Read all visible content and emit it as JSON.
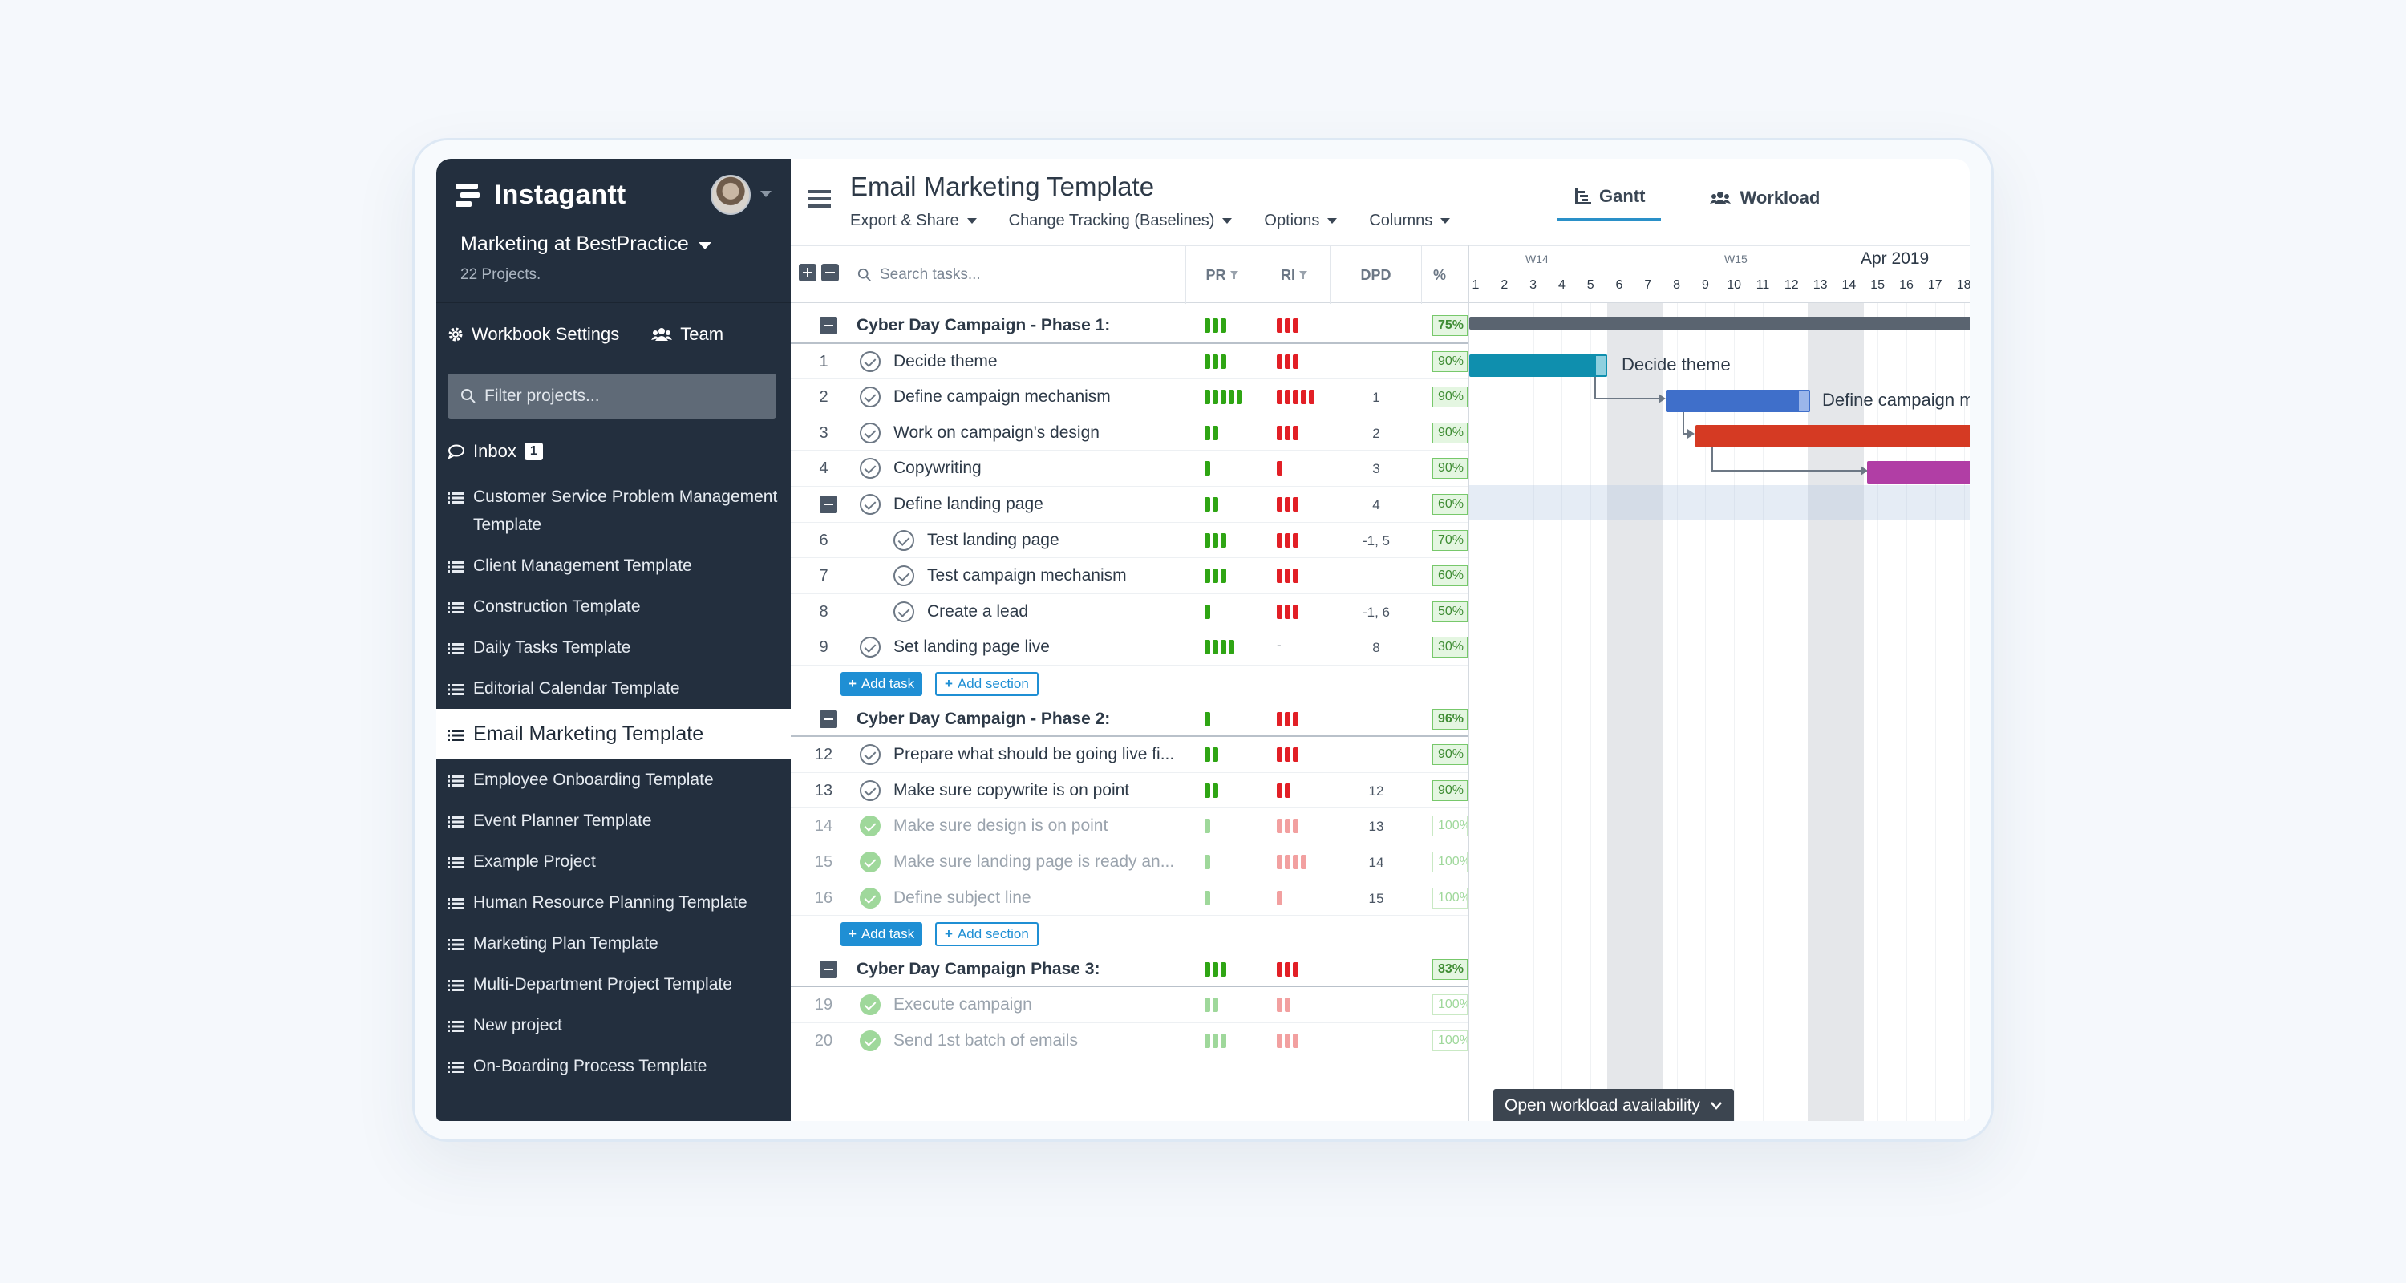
{
  "sidebar": {
    "app_name": "Instagantt",
    "workbook": "Marketing at BestPractice",
    "project_count": "22 Projects.",
    "workbook_settings": "Workbook Settings",
    "team": "Team",
    "filter_placeholder": "Filter projects...",
    "inbox": "Inbox",
    "inbox_count": "1",
    "projects": [
      "Customer Service Problem Management Template",
      "Client Management Template",
      "Construction Template",
      "Daily Tasks Template",
      "Editorial Calendar Template",
      "Email Marketing Template",
      "Employee Onboarding Template",
      "Event Planner Template",
      "Example Project",
      "Human Resource Planning Template",
      "Marketing Plan Template",
      "Multi-Department Project Template",
      "New project",
      "On-Boarding Process Template"
    ],
    "active_project_index": 5
  },
  "header": {
    "title": "Email Marketing Template",
    "menus": [
      "Export & Share",
      "Change Tracking (Baselines)",
      "Options",
      "Columns"
    ],
    "views": [
      "Gantt",
      "Workload"
    ]
  },
  "table": {
    "search_placeholder": "Search tasks...",
    "columns": [
      "PR",
      "RI",
      "DPD",
      "%"
    ],
    "add_task": "Add task",
    "add_section": "Add section",
    "sections": [
      {
        "name": "Cyber Day Campaign - Phase 1:",
        "pr": 3,
        "ri": 3,
        "pct": "75%",
        "tasks": [
          {
            "num": "1",
            "name": "Decide theme",
            "pr": 3,
            "ri": 3,
            "dpd": "",
            "pct": "90%",
            "indent": 0,
            "done": false
          },
          {
            "num": "2",
            "name": "Define campaign mechanism",
            "pr": 5,
            "ri": 5,
            "dpd": "1",
            "pct": "90%",
            "indent": 0,
            "done": false
          },
          {
            "num": "3",
            "name": "Work on campaign's design",
            "pr": 2,
            "ri": 3,
            "dpd": "2",
            "pct": "90%",
            "indent": 0,
            "done": false
          },
          {
            "num": "4",
            "name": "Copywriting",
            "pr": 1,
            "ri": 1,
            "dpd": "3",
            "pct": "90%",
            "indent": 0,
            "done": false
          },
          {
            "num": "",
            "name": "Define landing page",
            "pr": 2,
            "ri": 3,
            "dpd": "4",
            "pct": "60%",
            "indent": 0,
            "done": false,
            "parent": true
          },
          {
            "num": "6",
            "name": "Test landing page",
            "pr": 3,
            "ri": 3,
            "dpd": "-1, 5",
            "pct": "70%",
            "indent": 1,
            "done": false
          },
          {
            "num": "7",
            "name": "Test campaign mechanism",
            "pr": 3,
            "ri": 3,
            "dpd": "",
            "pct": "60%",
            "indent": 1,
            "done": false
          },
          {
            "num": "8",
            "name": "Create a lead",
            "pr": 1,
            "ri": 3,
            "dpd": "-1, 6",
            "pct": "50%",
            "indent": 1,
            "done": false
          },
          {
            "num": "9",
            "name": "Set landing page live",
            "pr": 4,
            "ri": 0,
            "ri_text": "-",
            "dpd": "8",
            "pct": "30%",
            "indent": 0,
            "done": false
          }
        ]
      },
      {
        "name": "Cyber Day Campaign - Phase 2:",
        "pr": 1,
        "ri": 3,
        "pct": "96%",
        "tasks": [
          {
            "num": "12",
            "name": "Prepare what should be going live fi...",
            "pr": 2,
            "ri": 3,
            "dpd": "",
            "pct": "90%",
            "indent": 0,
            "done": false
          },
          {
            "num": "13",
            "name": "Make sure copywrite is on point",
            "pr": 2,
            "ri": 2,
            "dpd": "12",
            "pct": "90%",
            "indent": 0,
            "done": false
          },
          {
            "num": "14",
            "name": "Make sure design is on point",
            "pr": 1,
            "ri": 3,
            "dpd": "13",
            "pct": "100%",
            "indent": 0,
            "done": true
          },
          {
            "num": "15",
            "name": "Make sure landing page is ready an...",
            "pr": 1,
            "ri": 4,
            "dpd": "14",
            "pct": "100%",
            "indent": 0,
            "done": true
          },
          {
            "num": "16",
            "name": "Define subject line",
            "pr": 1,
            "ri": 1,
            "dpd": "15",
            "pct": "100%",
            "indent": 0,
            "done": true
          }
        ]
      },
      {
        "name": "Cyber Day Campaign Phase 3:",
        "pr": 3,
        "ri": 3,
        "pct": "83%",
        "tasks": [
          {
            "num": "19",
            "name": "Execute campaign",
            "pr": 2,
            "ri": 2,
            "dpd": "",
            "pct": "100%",
            "indent": 0,
            "done": true
          },
          {
            "num": "20",
            "name": "Send 1st batch of emails",
            "pr": 3,
            "ri": 3,
            "dpd": "",
            "pct": "100%",
            "indent": 0,
            "done": true
          }
        ]
      }
    ]
  },
  "gantt": {
    "weeks": [
      "W14",
      "W15"
    ],
    "month": "Apr 2019",
    "days": [
      "1",
      "2",
      "3",
      "4",
      "5",
      "6",
      "7",
      "8",
      "9",
      "10",
      "11",
      "12",
      "13",
      "14",
      "15",
      "16",
      "17",
      "18"
    ],
    "bar_labels": [
      "Decide theme",
      "Define campaign mechanism"
    ],
    "workload_button": "Open workload availability",
    "colors": {
      "summary": "#5a6470",
      "teal": "#0f8fae",
      "blue": "#3f6fca",
      "red": "#d53a23",
      "magenta": "#b13ea5"
    }
  }
}
